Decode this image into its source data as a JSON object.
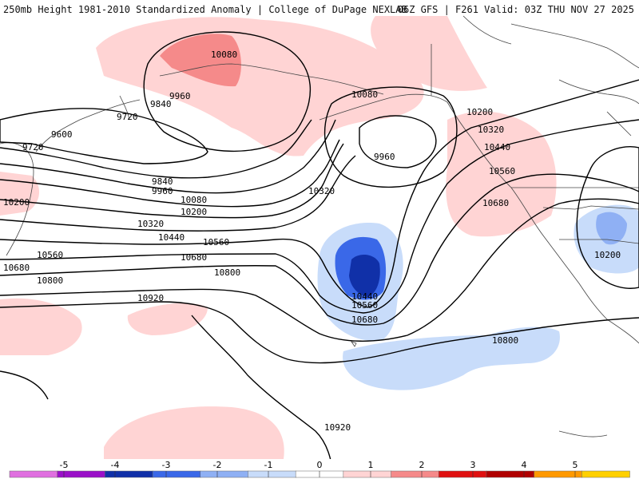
{
  "header": {
    "title_left": "250mb Height 1981-2010 Standardized Anomaly | College of DuPage NEXLAB",
    "title_right": "06Z GFS | F261 Valid: 03Z THU NOV 27 2025"
  },
  "contour_labels": [
    "10080",
    "9960",
    "9840",
    "9720",
    "9600",
    "9720",
    "10080",
    "9960",
    "10200",
    "10320",
    "10440",
    "10560",
    "10680",
    "9840",
    "9960",
    "10080",
    "10200",
    "10320",
    "10440",
    "10560",
    "10680",
    "10800",
    "10320",
    "10440",
    "10560",
    "10680",
    "10800",
    "10920",
    "10200",
    "10800",
    "10920",
    "10200"
  ],
  "colorbar": {
    "ticks": [
      "-5",
      "-4",
      "-3",
      "-2",
      "-1",
      "0",
      "1",
      "2",
      "3",
      "4",
      "5"
    ],
    "colors": [
      "#e070e0",
      "#9a10c8",
      "#1030a8",
      "#3a68e8",
      "#8fb0f4",
      "#c8dcfa",
      "#ffffff",
      "#ffd4d4",
      "#f58a8a",
      "#e01010",
      "#b00000",
      "#ff9900",
      "#ffd000"
    ]
  }
}
